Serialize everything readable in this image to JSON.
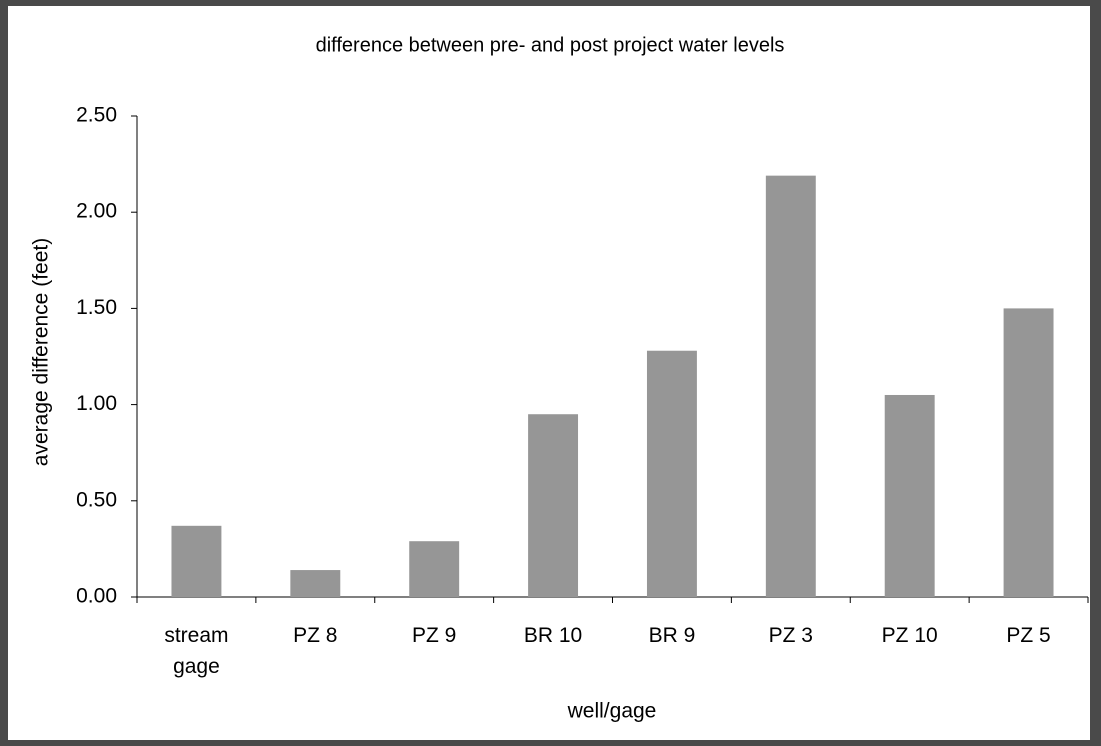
{
  "chart_data": {
    "type": "bar",
    "title": "difference between pre- and post project water levels",
    "x_label": "well/gage",
    "y_label": "average difference (feet)",
    "categories": [
      "stream gage",
      "PZ 8",
      "PZ 9",
      "BR 10",
      "BR 9",
      "PZ 3",
      "PZ 10",
      "PZ 5"
    ],
    "values": [
      0.37,
      0.14,
      0.29,
      0.95,
      1.28,
      2.19,
      1.05,
      1.5
    ],
    "color": "#969696",
    "ylim": [
      0,
      2.5
    ],
    "yticks": [
      {
        "value": 0,
        "label": "0.00"
      },
      {
        "value": 0.5,
        "label": "0.50"
      },
      {
        "value": 1,
        "label": "1.00"
      },
      {
        "value": 1.5,
        "label": "1.50"
      },
      {
        "value": 2,
        "label": "2.00"
      },
      {
        "value": 2.5,
        "label": "2.50"
      }
    ],
    "grid": false
  }
}
